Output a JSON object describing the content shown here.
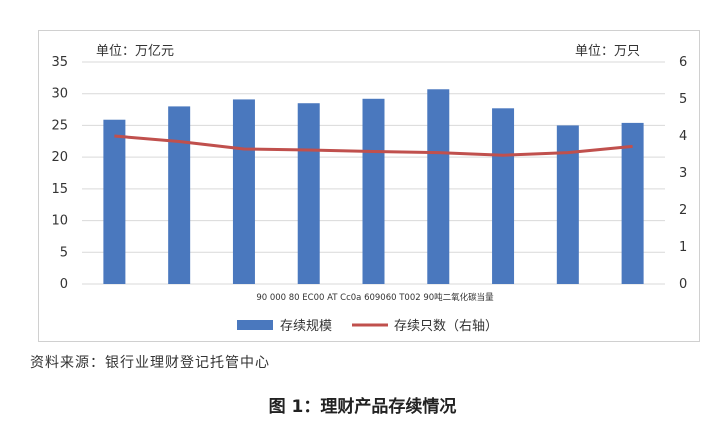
{
  "chart_data": {
    "type": "bar",
    "categories": [
      "",
      "",
      "",
      "",
      "",
      "",
      "",
      "",
      ""
    ],
    "category_label_text": "90 000 80 EC00 AT Cc0a 609060 T002 90吨二氧化碳当量",
    "series": [
      {
        "name": "存续规模",
        "type": "bar",
        "axis": "left",
        "color": "#4a78be",
        "values": [
          25.9,
          28.0,
          29.1,
          28.5,
          29.2,
          30.7,
          27.7,
          25.0,
          25.4
        ]
      },
      {
        "name": "存续只数（右轴）",
        "type": "line",
        "axis": "right",
        "color": "#c0504d",
        "values": [
          4.0,
          3.85,
          3.65,
          3.62,
          3.58,
          3.55,
          3.48,
          3.55,
          3.72
        ]
      }
    ],
    "left_unit": "单位：万亿元",
    "right_unit": "单位：万只",
    "ylim_left": [
      0,
      35
    ],
    "yticks_left": [
      0,
      5,
      10,
      15,
      20,
      25,
      30,
      35
    ],
    "ylim_right": [
      0,
      6
    ],
    "yticks_right": [
      0,
      1,
      2,
      3,
      4,
      5,
      6
    ],
    "grid": true,
    "legend_position": "bottom"
  },
  "source_text": "资料来源：银行业理财登记托管中心",
  "figure_caption": "图 1：理财产品存续情况"
}
